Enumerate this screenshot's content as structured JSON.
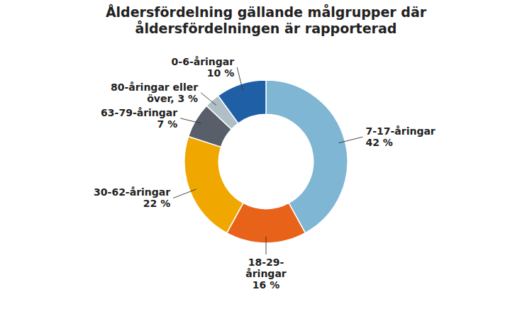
{
  "chart_data": {
    "type": "pie",
    "title": "Åldersfördelning gällande målgrupper där\nåldersfördelningen är rapporterad",
    "categories": [
      "7-17-åringar\n42 %",
      "18-29-\nåringar\n16 %",
      "30-62-åringar\n22 %",
      "63-79-åringar\n7 %",
      "80-åringar eller\növer, 3 %",
      "0-6-åringar\n10 %"
    ],
    "values": [
      42,
      16,
      22,
      7,
      3,
      10
    ],
    "colors": [
      "#7eb6d4",
      "#e8621a",
      "#f0a800",
      "#595e6b",
      "#b0bec5",
      "#1f5fa6"
    ]
  }
}
